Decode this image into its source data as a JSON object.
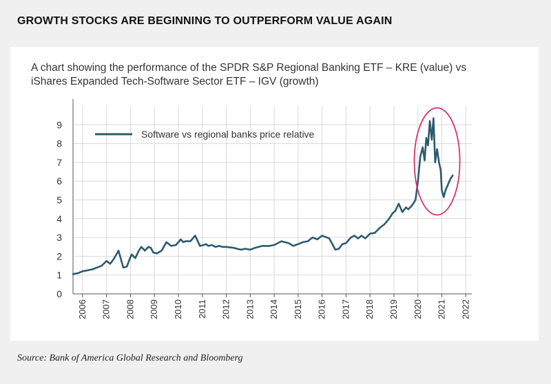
{
  "heading": "GROWTH STOCKS ARE BEGINNING TO OUTPERFORM VALUE AGAIN",
  "subtitle": "A chart showing the performance of the SPDR S&P Regional Banking ETF – KRE (value) vs iShares Expanded Tech-Software Sector ETF – IGV (growth)",
  "source": "Source: Bank of America Global Research and Bloomberg",
  "colors": {
    "line": "#2d5a6e",
    "highlight_circle": "#d6336c",
    "grid": "#d9d9d9",
    "axis": "#555555"
  },
  "chart_data": {
    "type": "line",
    "title": "",
    "xlabel": "",
    "ylabel": "",
    "ylim": [
      0,
      10
    ],
    "xlim": [
      2005.6,
      2022.25
    ],
    "y_ticks": [
      "0",
      "1",
      "2",
      "3",
      "4",
      "5",
      "6",
      "7",
      "8",
      "9"
    ],
    "x_ticks": [
      "2006",
      "2007",
      "2008",
      "2009",
      "2010",
      "2011",
      "2012",
      "2013",
      "2014",
      "2015",
      "2016",
      "2017",
      "2018",
      "2019",
      "2020",
      "2021",
      "2022"
    ],
    "legend": "top-left",
    "grid": true,
    "series": [
      {
        "name": "Software vs regional banks price relative",
        "x": [
          2005.6,
          2005.8,
          2006.0,
          2006.2,
          2006.4,
          2006.6,
          2006.8,
          2007.0,
          2007.15,
          2007.3,
          2007.5,
          2007.7,
          2007.85,
          2007.95,
          2008.05,
          2008.2,
          2008.35,
          2008.45,
          2008.6,
          2008.75,
          2008.85,
          2008.95,
          2009.1,
          2009.3,
          2009.5,
          2009.7,
          2009.9,
          2010.1,
          2010.2,
          2010.3,
          2010.5,
          2010.7,
          2010.9,
          2011.05,
          2011.15,
          2011.25,
          2011.4,
          2011.55,
          2011.7,
          2011.85,
          2012.0,
          2012.3,
          2012.6,
          2012.8,
          2013.0,
          2013.2,
          2013.5,
          2013.8,
          2014.0,
          2014.3,
          2014.6,
          2014.8,
          2015.0,
          2015.2,
          2015.4,
          2015.6,
          2015.8,
          2016.0,
          2016.2,
          2016.3,
          2016.45,
          2016.55,
          2016.7,
          2016.85,
          2017.0,
          2017.2,
          2017.35,
          2017.5,
          2017.65,
          2017.8,
          2018.0,
          2018.2,
          2018.4,
          2018.6,
          2018.8,
          2018.95,
          2019.05,
          2019.2,
          2019.35,
          2019.5,
          2019.6,
          2019.75,
          2019.9,
          2020.0,
          2020.1,
          2020.2,
          2020.28,
          2020.35,
          2020.42,
          2020.5,
          2020.58,
          2020.65,
          2020.72,
          2020.8,
          2020.88,
          2020.95,
          2021.0,
          2021.08,
          2021.15,
          2021.25,
          2021.35,
          2021.45
        ],
        "values": [
          1.05,
          1.1,
          1.2,
          1.25,
          1.3,
          1.4,
          1.5,
          1.75,
          1.6,
          1.85,
          2.3,
          1.4,
          1.45,
          1.8,
          2.1,
          1.9,
          2.3,
          2.5,
          2.3,
          2.5,
          2.45,
          2.2,
          2.15,
          2.3,
          2.75,
          2.55,
          2.6,
          2.9,
          2.75,
          2.8,
          2.8,
          3.1,
          2.55,
          2.6,
          2.65,
          2.55,
          2.6,
          2.5,
          2.55,
          2.5,
          2.5,
          2.45,
          2.35,
          2.4,
          2.35,
          2.45,
          2.55,
          2.55,
          2.6,
          2.8,
          2.7,
          2.55,
          2.65,
          2.75,
          2.8,
          3.0,
          2.9,
          3.1,
          3.0,
          2.95,
          2.6,
          2.35,
          2.4,
          2.65,
          2.7,
          3.0,
          3.1,
          2.95,
          3.1,
          2.95,
          3.2,
          3.25,
          3.5,
          3.7,
          4.0,
          4.3,
          4.4,
          4.8,
          4.35,
          4.6,
          4.5,
          4.7,
          5.0,
          6.0,
          7.3,
          7.8,
          7.1,
          8.3,
          7.9,
          9.2,
          8.2,
          9.35,
          7.0,
          7.7,
          7.0,
          6.6,
          5.5,
          5.15,
          5.5,
          5.8,
          6.1,
          6.3
        ]
      }
    ],
    "annotations": [
      {
        "type": "circle",
        "label": "highlight",
        "center_x": 2020.8,
        "center_y": 7.05,
        "radius_x_years": 0.95,
        "radius_y_value": 2.85
      }
    ]
  }
}
